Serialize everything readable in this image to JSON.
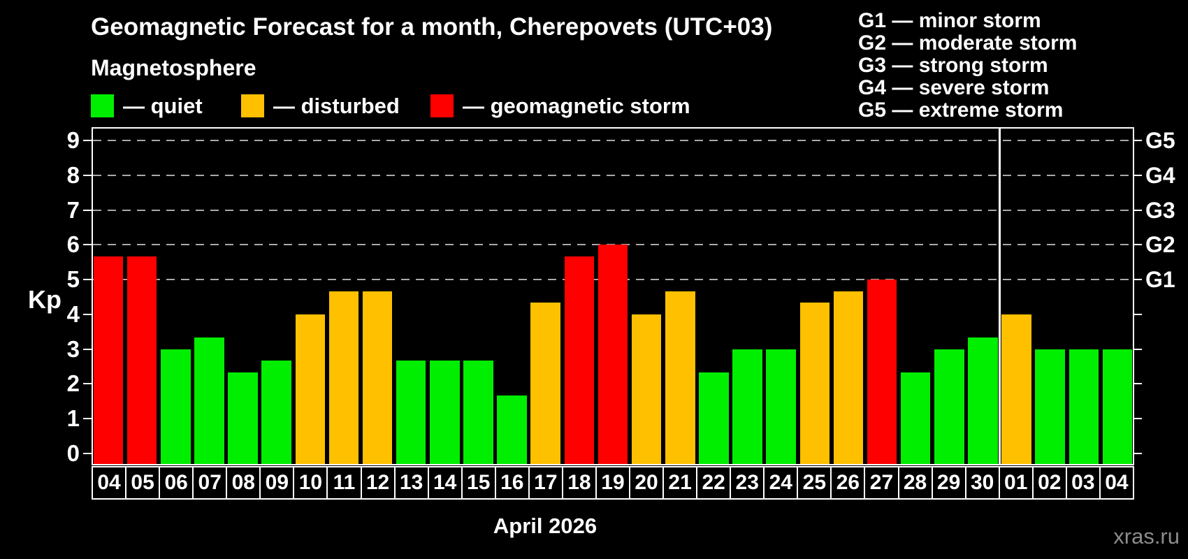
{
  "title": "Geomagnetic Forecast for a month, Cherepovets (UTC+03)",
  "subtitle": "Magnetosphere",
  "legend": {
    "items": [
      {
        "key": "quiet",
        "label": "— quiet"
      },
      {
        "key": "disturbed",
        "label": "— disturbed"
      },
      {
        "key": "storm",
        "label": "— geomagnetic storm"
      }
    ]
  },
  "g_legend_lines": [
    "G1 — minor storm",
    "G2 — moderate storm",
    "G3 — strong storm",
    "G4 — severe storm",
    "G5 — extreme storm"
  ],
  "colors": {
    "quiet": "#00ee00",
    "disturbed": "#ffc000",
    "storm": "#ff0000",
    "gridline": "#a9a9a9",
    "frame": "#ffffff",
    "watermark": "#8c8c8c"
  },
  "watermark": "xras.ru",
  "chart_data": {
    "type": "bar",
    "title": "Geomagnetic Forecast for a month, Cherepovets (UTC+03)",
    "ylabel": "Kp",
    "xlabel": "April 2026",
    "ylim": [
      0,
      9
    ],
    "yticks": [
      0,
      1,
      2,
      3,
      4,
      5,
      6,
      7,
      8,
      9
    ],
    "gridlines_kp": [
      5,
      6,
      7,
      8,
      9
    ],
    "grid": "dashed, only at Kp 5-9",
    "legend_position": "top-left",
    "right_axis": [
      {
        "label": "G1",
        "kp": 5
      },
      {
        "label": "G2",
        "kp": 6
      },
      {
        "label": "G3",
        "kp": 7
      },
      {
        "label": "G4",
        "kp": 8
      },
      {
        "label": "G5",
        "kp": 9
      }
    ],
    "separator_after_slot": 27,
    "categories": [
      "04",
      "05",
      "06",
      "07",
      "08",
      "09",
      "10",
      "11",
      "12",
      "13",
      "14",
      "15",
      "16",
      "17",
      "18",
      "19",
      "20",
      "21",
      "22",
      "23",
      "24",
      "25",
      "26",
      "27",
      "28",
      "29",
      "30",
      "01",
      "02",
      "03",
      "04"
    ],
    "values": [
      5.67,
      5.67,
      3.0,
      3.33,
      2.33,
      2.67,
      4.0,
      4.67,
      4.67,
      2.67,
      2.67,
      2.67,
      1.67,
      4.33,
      5.67,
      6.0,
      4.0,
      4.67,
      2.33,
      3.0,
      3.0,
      4.33,
      4.67,
      5.0,
      2.33,
      3.0,
      3.33,
      4.0,
      3.0,
      3.0,
      3.0
    ],
    "status": [
      "storm",
      "storm",
      "quiet",
      "quiet",
      "quiet",
      "quiet",
      "disturbed",
      "disturbed",
      "disturbed",
      "quiet",
      "quiet",
      "quiet",
      "quiet",
      "disturbed",
      "storm",
      "storm",
      "disturbed",
      "disturbed",
      "quiet",
      "quiet",
      "quiet",
      "disturbed",
      "disturbed",
      "storm",
      "quiet",
      "quiet",
      "quiet",
      "disturbed",
      "quiet",
      "quiet",
      "quiet"
    ]
  }
}
